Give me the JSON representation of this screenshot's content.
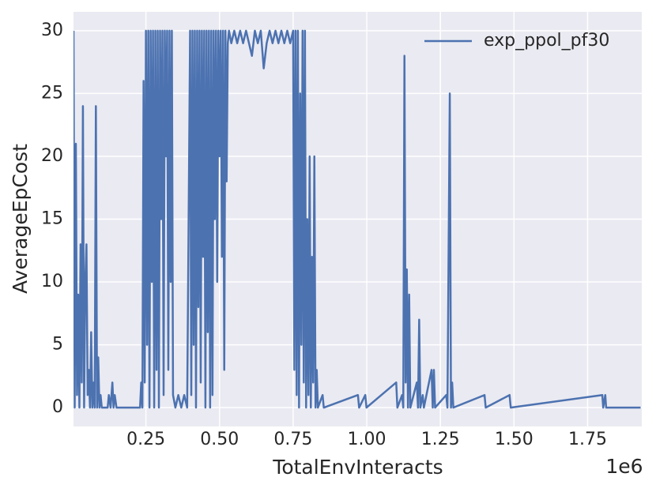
{
  "chart_data": {
    "type": "line",
    "xlabel": "TotalEnvInteracts",
    "ylabel": "AverageEpCost",
    "x_offset_label": "1e6",
    "xlim": [
      4000,
      1934000
    ],
    "ylim": [
      -1.5,
      31.5
    ],
    "xticks": [
      {
        "value": 250000,
        "label": "0.25"
      },
      {
        "value": 500000,
        "label": "0.50"
      },
      {
        "value": 750000,
        "label": "0.75"
      },
      {
        "value": 1000000,
        "label": "1.00"
      },
      {
        "value": 1250000,
        "label": "1.25"
      },
      {
        "value": 1500000,
        "label": "1.50"
      },
      {
        "value": 1750000,
        "label": "1.75"
      }
    ],
    "yticks": [
      0,
      5,
      10,
      15,
      20,
      25,
      30
    ],
    "grid": true,
    "legend": "upper right",
    "x": [
      4000,
      8000,
      12000,
      16000,
      20000,
      24000,
      28000,
      32000,
      36000,
      40000,
      44000,
      48000,
      52000,
      56000,
      60000,
      64000,
      68000,
      72000,
      76000,
      80000,
      84000,
      88000,
      92000,
      96000,
      100000,
      120000,
      124000,
      130000,
      136000,
      140000,
      144000,
      150000,
      230000,
      234000,
      238000,
      242000,
      246000,
      250000,
      254000,
      258000,
      262000,
      266000,
      270000,
      274000,
      278000,
      282000,
      286000,
      290000,
      294000,
      298000,
      302000,
      306000,
      310000,
      314000,
      318000,
      322000,
      326000,
      330000,
      334000,
      338000,
      342000,
      350000,
      360000,
      370000,
      380000,
      390000,
      400000,
      404000,
      408000,
      412000,
      416000,
      420000,
      424000,
      428000,
      432000,
      436000,
      440000,
      444000,
      448000,
      452000,
      456000,
      460000,
      464000,
      468000,
      472000,
      476000,
      480000,
      484000,
      488000,
      492000,
      496000,
      500000,
      504000,
      508000,
      512000,
      516000,
      520000,
      524000,
      528000,
      532000,
      540000,
      550000,
      560000,
      570000,
      580000,
      590000,
      600000,
      610000,
      620000,
      630000,
      640000,
      650000,
      660000,
      670000,
      680000,
      690000,
      700000,
      710000,
      720000,
      730000,
      740000,
      750000,
      754000,
      758000,
      762000,
      766000,
      770000,
      774000,
      778000,
      782000,
      786000,
      790000,
      794000,
      798000,
      802000,
      806000,
      810000,
      814000,
      818000,
      822000,
      826000,
      830000,
      834000,
      850000,
      854000,
      970000,
      974000,
      995000,
      999000,
      1100000,
      1104000,
      1120000,
      1124000,
      1128000,
      1132000,
      1136000,
      1140000,
      1144000,
      1148000,
      1170000,
      1174000,
      1178000,
      1182000,
      1190000,
      1194000,
      1220000,
      1224000,
      1228000,
      1232000,
      1270000,
      1274000,
      1282000,
      1286000,
      1290000,
      1294000,
      1400000,
      1404000,
      1485000,
      1489000,
      1800000,
      1803000,
      1810000,
      1813000,
      1930000
    ],
    "series": [
      {
        "name": "exp_ppol_pf30",
        "color": "#4c72b0",
        "values": [
          30,
          0,
          21,
          1,
          9,
          0,
          13,
          2,
          24,
          0,
          10,
          13,
          1,
          3,
          0,
          6,
          0,
          2,
          0,
          24,
          0,
          4,
          0,
          1,
          0,
          0,
          1,
          0,
          2,
          0,
          1,
          0,
          0,
          2,
          0,
          26,
          2,
          30,
          5,
          30,
          0,
          30,
          10,
          30,
          0,
          30,
          3,
          30,
          0,
          30,
          15,
          30,
          1,
          30,
          20,
          30,
          3,
          30,
          10,
          30,
          1,
          0,
          1,
          0,
          1,
          0,
          30,
          1,
          30,
          5,
          30,
          0,
          30,
          8,
          30,
          2,
          30,
          12,
          30,
          0,
          30,
          6,
          30,
          0,
          30,
          1,
          30,
          15,
          30,
          10,
          30,
          20,
          30,
          12,
          30,
          3,
          30,
          18,
          29,
          30,
          29,
          30,
          29,
          30,
          29,
          30,
          29,
          28,
          30,
          29,
          30,
          27,
          29,
          30,
          29,
          30,
          29,
          30,
          29,
          30,
          29,
          30,
          3,
          30,
          1,
          30,
          0,
          25,
          5,
          30,
          2,
          30,
          0,
          15,
          1,
          20,
          0,
          12,
          2,
          20,
          0,
          3,
          0,
          1,
          0,
          1,
          0,
          1,
          0,
          2,
          0,
          1,
          0,
          28,
          2,
          11,
          0,
          9,
          0,
          2,
          0,
          7,
          0,
          1,
          0,
          3,
          0,
          3,
          0,
          1,
          0,
          25,
          0,
          2,
          0,
          1,
          0,
          1,
          0,
          1,
          0,
          1,
          0,
          0
        ]
      }
    ]
  }
}
